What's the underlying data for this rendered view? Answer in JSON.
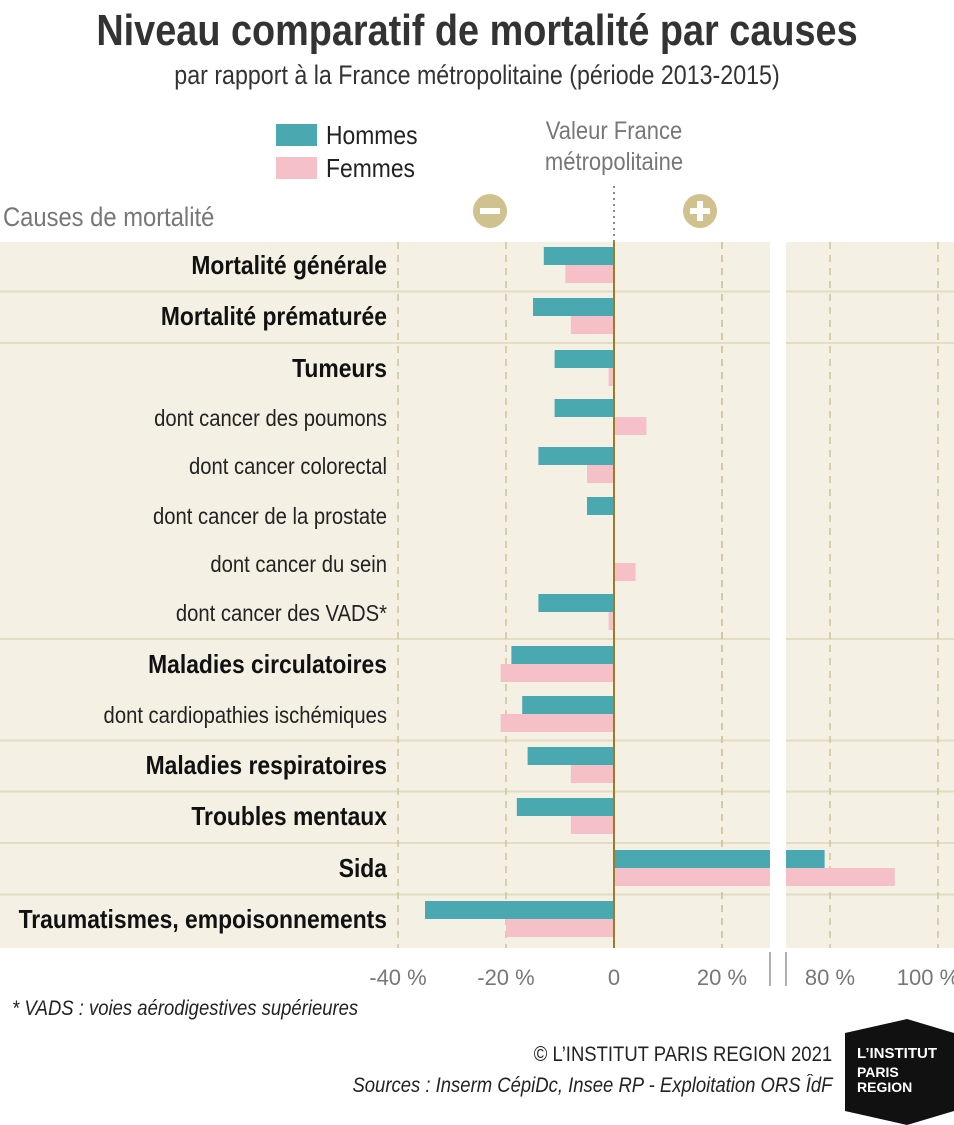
{
  "title": "Niveau comparatif de mortalité par causes",
  "subtitle": "par rapport à la France métropolitaine (période 2013-2015)",
  "legend": {
    "hommes": "Hommes",
    "femmes": "Femmes"
  },
  "reference_label": {
    "line1": "Valeur France",
    "line2": "métropolitaine"
  },
  "minus_icon": "minus-circle-icon",
  "plus_icon": "plus-circle-icon",
  "footnote": "* VADS : voies aérodigestives supérieures",
  "copyright": "© L’INSTITUT PARIS REGION 2021",
  "sources": "Sources : Inserm CépiDc, Insee RP - Exploitation ORS ÎdF",
  "logo": {
    "line1": "L’INSTITUT",
    "line2": "PARIS",
    "line3": "REGION"
  },
  "colors": {
    "hommes": "#4aa8b0",
    "femmes": "#f5c0c8",
    "band": "#f4f1e4",
    "zero_line": "#9c7b2c",
    "icon": "#cfc28e",
    "grid": "#cfc493"
  },
  "chart_data": {
    "type": "bar",
    "orientation": "horizontal",
    "axis_title": "Causes de mortalité",
    "axis_break": true,
    "xlim_left": [
      -40,
      28
    ],
    "xlim_right": [
      72,
      100
    ],
    "xticks": [
      {
        "value": -40,
        "label": "-40 %"
      },
      {
        "value": -20,
        "label": "-20 %"
      },
      {
        "value": 0,
        "label": "0"
      },
      {
        "value": 20,
        "label": "20 %"
      },
      {
        "value": 80,
        "label": "80 %"
      },
      {
        "value": 100,
        "label": "100 %"
      }
    ],
    "grid": true,
    "series": [
      {
        "name": "Hommes",
        "key": "hommes"
      },
      {
        "name": "Femmes",
        "key": "femmes"
      }
    ],
    "categories": [
      {
        "label": "Mortalité générale",
        "bold": true,
        "hommes": -13,
        "femmes": -9
      },
      {
        "label": "Mortalité prématurée",
        "bold": true,
        "hommes": -15,
        "femmes": -8
      },
      {
        "label": "Tumeurs",
        "bold": true,
        "hommes": -11,
        "femmes": -1
      },
      {
        "label": "dont cancer des poumons",
        "bold": false,
        "hommes": -11,
        "femmes": 6
      },
      {
        "label": "dont cancer colorectal",
        "bold": false,
        "hommes": -14,
        "femmes": -5
      },
      {
        "label": "dont cancer de la prostate",
        "bold": false,
        "hommes": -5,
        "femmes": null
      },
      {
        "label": "dont cancer du sein",
        "bold": false,
        "hommes": null,
        "femmes": 4
      },
      {
        "label": "dont cancer des VADS*",
        "bold": false,
        "hommes": -14,
        "femmes": -1
      },
      {
        "label": "Maladies circulatoires",
        "bold": true,
        "hommes": -19,
        "femmes": -21
      },
      {
        "label": "dont cardiopathies ischémiques",
        "bold": false,
        "hommes": -17,
        "femmes": -21
      },
      {
        "label": "Maladies respiratoires",
        "bold": true,
        "hommes": -16,
        "femmes": -8
      },
      {
        "label": "Troubles mentaux",
        "bold": true,
        "hommes": -18,
        "femmes": -8
      },
      {
        "label": "Sida",
        "bold": true,
        "hommes": 79,
        "femmes": 92
      },
      {
        "label": "Traumatismes, empoisonnements",
        "bold": true,
        "hommes": -35,
        "femmes": -20
      }
    ]
  }
}
